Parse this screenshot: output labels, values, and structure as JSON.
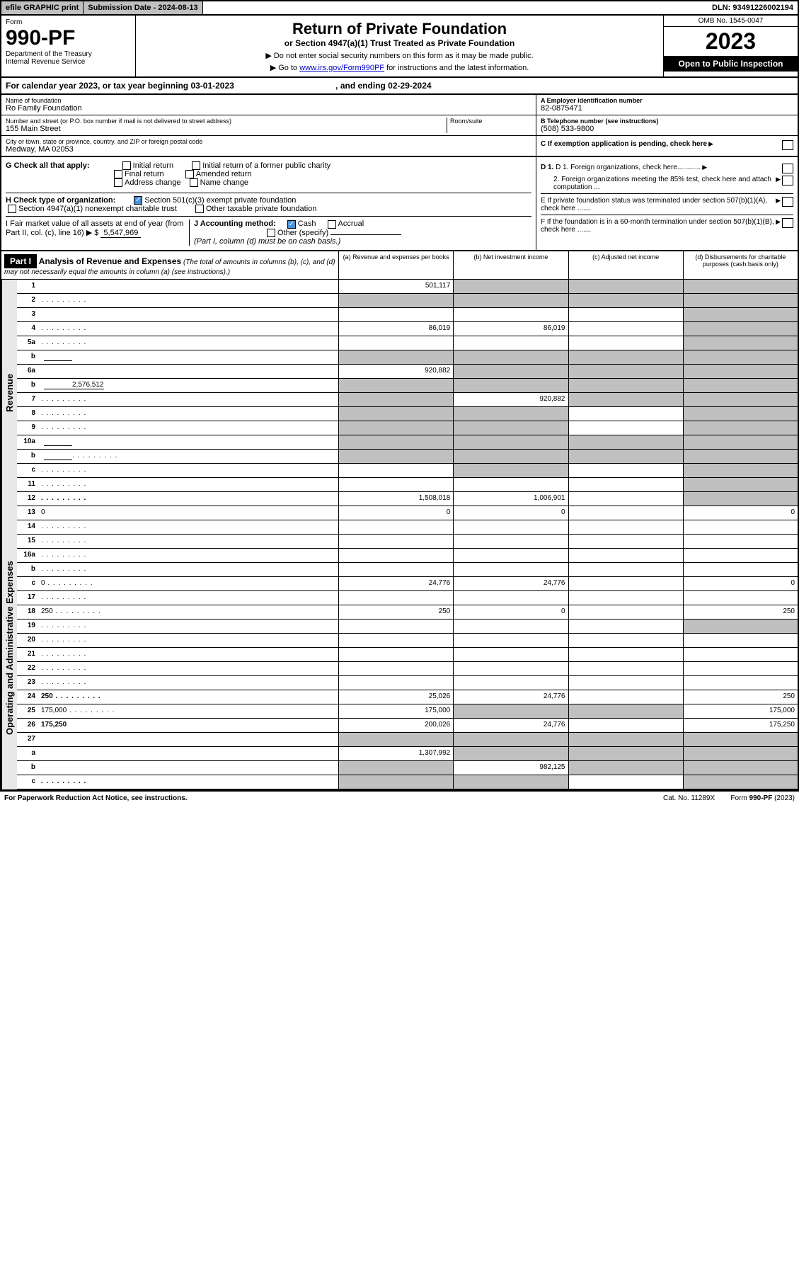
{
  "topbar": {
    "efile": "efile GRAPHIC print",
    "subdate_lbl": "Submission Date - ",
    "subdate": "2024-08-13",
    "dln_lbl": "DLN: ",
    "dln": "93491226002194"
  },
  "header": {
    "form_small": "Form",
    "form_num": "990-PF",
    "dept": "Department of the Treasury",
    "irs": "Internal Revenue Service",
    "title": "Return of Private Foundation",
    "subtitle": "or Section 4947(a)(1) Trust Treated as Private Foundation",
    "note1": "▶ Do not enter social security numbers on this form as it may be made public.",
    "note2_pre": "▶ Go to ",
    "note2_link": "www.irs.gov/Form990PF",
    "note2_post": " for instructions and the latest information.",
    "omb": "OMB No. 1545-0047",
    "year": "2023",
    "open": "Open to Public Inspection"
  },
  "taxyear": {
    "text": "For calendar year 2023, or tax year beginning 03-01-2023",
    "ending": ", and ending 02-29-2024"
  },
  "info": {
    "name_lbl": "Name of foundation",
    "name": "Ro Family Foundation",
    "addr_lbl": "Number and street (or P.O. box number if mail is not delivered to street address)",
    "addr": "155 Main Street",
    "room_lbl": "Room/suite",
    "city_lbl": "City or town, state or province, country, and ZIP or foreign postal code",
    "city": "Medway, MA  02053",
    "a_lbl": "A Employer identification number",
    "a_val": "82-0875471",
    "b_lbl": "B Telephone number (see instructions)",
    "b_val": "(508) 533-9800",
    "c_lbl": "C If exemption application is pending, check here"
  },
  "checks": {
    "g": "G Check all that apply:",
    "g_opts": [
      "Initial return",
      "Initial return of a former public charity",
      "Final return",
      "Amended return",
      "Address change",
      "Name change"
    ],
    "h": "H Check type of organization:",
    "h1": "Section 501(c)(3) exempt private foundation",
    "h2": "Section 4947(a)(1) nonexempt charitable trust",
    "h3": "Other taxable private foundation",
    "i": "I Fair market value of all assets at end of year (from Part II, col. (c), line 16) ▶ $",
    "i_val": "5,547,969",
    "j": "J Accounting method:",
    "j_cash": "Cash",
    "j_accr": "Accrual",
    "j_other": "Other (specify)",
    "j_note": "(Part I, column (d) must be on cash basis.)",
    "d1": "D 1. Foreign organizations, check here............",
    "d2": "2. Foreign organizations meeting the 85% test, check here and attach computation ...",
    "e": "E  If private foundation status was terminated under section 507(b)(1)(A), check here .......",
    "f": "F  If the foundation is in a 60-month termination under section 507(b)(1)(B), check here .......  "
  },
  "part1": {
    "label": "Part I",
    "title": "Analysis of Revenue and Expenses",
    "title_note": " (The total of amounts in columns (b), (c), and (d) may not necessarily equal the amounts in column (a) (see instructions).)",
    "cols": {
      "a": "(a) Revenue and expenses per books",
      "b": "(b) Net investment income",
      "c": "(c) Adjusted net income",
      "d": "(d) Disbursements for charitable purposes (cash basis only)"
    }
  },
  "sections": {
    "revenue": "Revenue",
    "opex": "Operating and Administrative Expenses"
  },
  "rows": [
    {
      "n": "1",
      "d": "",
      "a": "501,117",
      "b": "",
      "c": "",
      "grey": [
        "b",
        "c",
        "d"
      ]
    },
    {
      "n": "2",
      "d": "",
      "dots": true,
      "a": "",
      "b": "",
      "c": "",
      "grey": [
        "a",
        "b",
        "c",
        "d"
      ]
    },
    {
      "n": "3",
      "d": "",
      "a": "",
      "b": "",
      "c": "",
      "grey": [
        "d"
      ]
    },
    {
      "n": "4",
      "d": "",
      "dots": true,
      "a": "86,019",
      "b": "86,019",
      "c": "",
      "grey": [
        "d"
      ]
    },
    {
      "n": "5a",
      "d": "",
      "dots": true,
      "a": "",
      "b": "",
      "c": "",
      "grey": [
        "d"
      ]
    },
    {
      "n": "b",
      "d": "",
      "inline": "",
      "a": "",
      "b": "",
      "c": "",
      "grey": [
        "a",
        "b",
        "c",
        "d"
      ]
    },
    {
      "n": "6a",
      "d": "",
      "a": "920,882",
      "b": "",
      "c": "",
      "grey": [
        "b",
        "c",
        "d"
      ]
    },
    {
      "n": "b",
      "d": "",
      "inline": "2,576,512",
      "a": "",
      "b": "",
      "c": "",
      "grey": [
        "a",
        "b",
        "c",
        "d"
      ]
    },
    {
      "n": "7",
      "d": "",
      "dots": true,
      "a": "",
      "b": "920,882",
      "c": "",
      "grey": [
        "a",
        "c",
        "d"
      ]
    },
    {
      "n": "8",
      "d": "",
      "dots": true,
      "a": "",
      "b": "",
      "c": "",
      "grey": [
        "a",
        "b",
        "d"
      ]
    },
    {
      "n": "9",
      "d": "",
      "dots": true,
      "a": "",
      "b": "",
      "c": "",
      "grey": [
        "a",
        "b",
        "d"
      ]
    },
    {
      "n": "10a",
      "d": "",
      "inline": "",
      "a": "",
      "b": "",
      "c": "",
      "grey": [
        "a",
        "b",
        "c",
        "d"
      ]
    },
    {
      "n": "b",
      "d": "",
      "dots": true,
      "inline": "",
      "a": "",
      "b": "",
      "c": "",
      "grey": [
        "a",
        "b",
        "c",
        "d"
      ]
    },
    {
      "n": "c",
      "d": "",
      "dots": true,
      "a": "",
      "b": "",
      "c": "",
      "grey": [
        "b",
        "d"
      ]
    },
    {
      "n": "11",
      "d": "",
      "dots": true,
      "a": "",
      "b": "",
      "c": "",
      "grey": [
        "d"
      ]
    },
    {
      "n": "12",
      "d": "",
      "dots": true,
      "bold": true,
      "a": "1,508,018",
      "b": "1,006,901",
      "c": "",
      "grey": [
        "d"
      ]
    },
    {
      "n": "13",
      "d": "0",
      "a": "0",
      "b": "0",
      "c": "",
      "sec": "opex"
    },
    {
      "n": "14",
      "d": "",
      "dots": true,
      "a": "",
      "b": "",
      "c": ""
    },
    {
      "n": "15",
      "d": "",
      "dots": true,
      "a": "",
      "b": "",
      "c": ""
    },
    {
      "n": "16a",
      "d": "",
      "dots": true,
      "a": "",
      "b": "",
      "c": ""
    },
    {
      "n": "b",
      "d": "",
      "dots": true,
      "a": "",
      "b": "",
      "c": ""
    },
    {
      "n": "c",
      "d": "0",
      "dots": true,
      "a": "24,776",
      "b": "24,776",
      "c": ""
    },
    {
      "n": "17",
      "d": "",
      "dots": true,
      "a": "",
      "b": "",
      "c": ""
    },
    {
      "n": "18",
      "d": "250",
      "dots": true,
      "a": "250",
      "b": "0",
      "c": ""
    },
    {
      "n": "19",
      "d": "",
      "dots": true,
      "a": "",
      "b": "",
      "c": "",
      "grey": [
        "d"
      ]
    },
    {
      "n": "20",
      "d": "",
      "dots": true,
      "a": "",
      "b": "",
      "c": ""
    },
    {
      "n": "21",
      "d": "",
      "dots": true,
      "a": "",
      "b": "",
      "c": ""
    },
    {
      "n": "22",
      "d": "",
      "dots": true,
      "a": "",
      "b": "",
      "c": ""
    },
    {
      "n": "23",
      "d": "",
      "dots": true,
      "a": "",
      "b": "",
      "c": ""
    },
    {
      "n": "24",
      "d": "250",
      "dots": true,
      "bold": true,
      "a": "25,026",
      "b": "24,776",
      "c": ""
    },
    {
      "n": "25",
      "d": "175,000",
      "dots": true,
      "a": "175,000",
      "b": "",
      "c": "",
      "grey": [
        "b",
        "c"
      ]
    },
    {
      "n": "26",
      "d": "175,250",
      "bold": true,
      "a": "200,026",
      "b": "24,776",
      "c": "",
      "grey": []
    },
    {
      "n": "27",
      "d": "",
      "a": "",
      "b": "",
      "c": "",
      "grey": [
        "a",
        "b",
        "c",
        "d"
      ]
    },
    {
      "n": "a",
      "d": "",
      "bold": true,
      "a": "1,307,992",
      "b": "",
      "c": "",
      "grey": [
        "b",
        "c",
        "d"
      ]
    },
    {
      "n": "b",
      "d": "",
      "bold": true,
      "a": "",
      "b": "982,125",
      "c": "",
      "grey": [
        "a",
        "c",
        "d"
      ]
    },
    {
      "n": "c",
      "d": "",
      "dots": true,
      "bold": true,
      "a": "",
      "b": "",
      "c": "",
      "grey": [
        "a",
        "b",
        "d"
      ]
    }
  ],
  "footer": {
    "left": "For Paperwork Reduction Act Notice, see instructions.",
    "mid": "Cat. No. 11289X",
    "right": "Form 990-PF (2023)"
  }
}
